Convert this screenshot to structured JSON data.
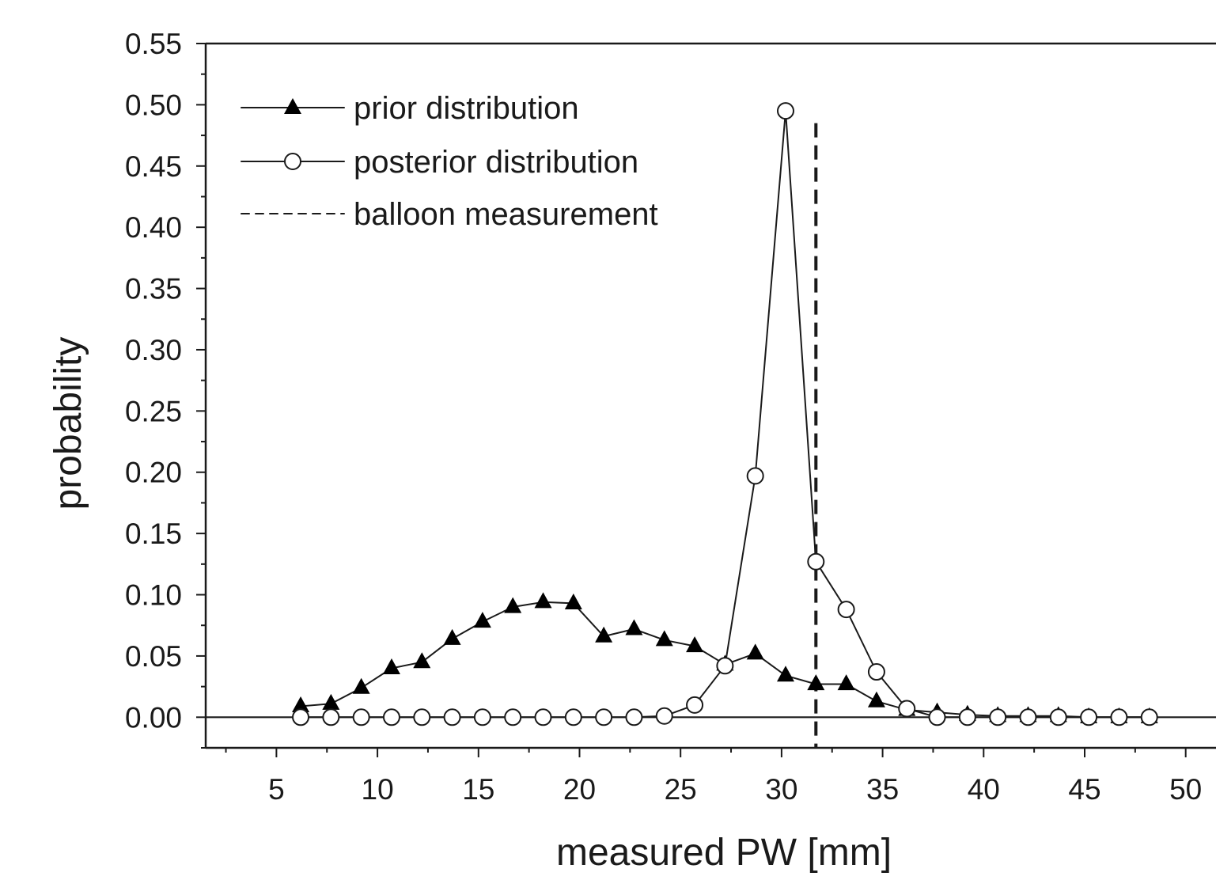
{
  "chart_data": {
    "type": "line",
    "xlabel": "measured PW [mm]",
    "ylabel": "probability",
    "xlim": [
      1.5,
      51.5
    ],
    "ylim": [
      -0.025,
      0.55
    ],
    "xticks": [
      5,
      10,
      15,
      20,
      25,
      30,
      35,
      40,
      45,
      50
    ],
    "yticks": [
      "0.00",
      "0.05",
      "0.10",
      "0.15",
      "0.20",
      "0.25",
      "0.30",
      "0.35",
      "0.40",
      "0.45",
      "0.50",
      "0.55"
    ],
    "grid": false,
    "legend_position": "top-left",
    "series": [
      {
        "name": "prior distribution",
        "marker": "filled-triangle",
        "x": [
          6.2,
          7.7,
          9.2,
          10.7,
          12.2,
          13.7,
          15.2,
          16.7,
          18.2,
          19.7,
          21.2,
          22.7,
          24.2,
          25.7,
          27.2,
          28.7,
          30.2,
          31.7,
          33.2,
          34.7,
          36.2,
          37.7,
          39.2,
          40.7,
          42.2,
          43.7,
          45.2,
          46.7,
          48.2
        ],
        "y": [
          0.009,
          0.011,
          0.024,
          0.04,
          0.045,
          0.064,
          0.078,
          0.09,
          0.094,
          0.093,
          0.066,
          0.072,
          0.063,
          0.058,
          0.043,
          0.052,
          0.034,
          0.027,
          0.027,
          0.013,
          0.006,
          0.004,
          0.002,
          0.001,
          0.001,
          0.001,
          0.0,
          0.0,
          0.0
        ]
      },
      {
        "name": "posterior distribution",
        "marker": "open-circle",
        "x": [
          6.2,
          7.7,
          9.2,
          10.7,
          12.2,
          13.7,
          15.2,
          16.7,
          18.2,
          19.7,
          21.2,
          22.7,
          24.2,
          25.7,
          27.2,
          28.7,
          30.2,
          31.7,
          33.2,
          34.7,
          36.2,
          37.7,
          39.2,
          40.7,
          42.2,
          43.7,
          45.2,
          46.7,
          48.2
        ],
        "y": [
          0.0,
          0.0,
          0.0,
          0.0,
          0.0,
          0.0,
          0.0,
          0.0,
          0.0,
          0.0,
          0.0,
          0.0,
          0.001,
          0.01,
          0.042,
          0.197,
          0.495,
          0.127,
          0.088,
          0.037,
          0.007,
          0.0,
          0.0,
          0.0,
          0.0,
          0.0,
          0.0,
          0.0,
          0.0
        ]
      }
    ],
    "reference_lines": [
      {
        "name": "balloon measurement",
        "orientation": "vertical",
        "x": 31.7,
        "y_top": 0.485,
        "style": "dashed"
      }
    ]
  }
}
